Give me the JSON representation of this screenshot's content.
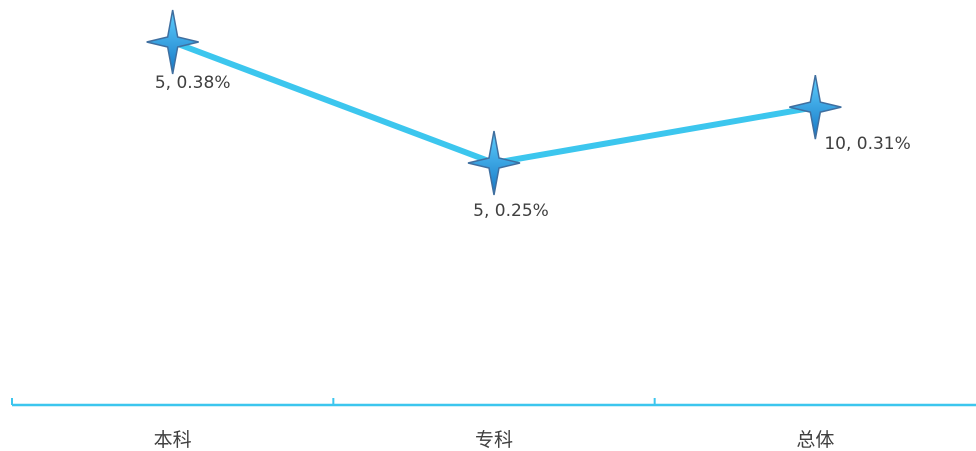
{
  "chart_data": {
    "type": "line",
    "categories": [
      "本科",
      "专科",
      "总体"
    ],
    "series": [
      {
        "counts": [
          5,
          5,
          10
        ],
        "values": [
          0.38,
          0.25,
          0.31
        ],
        "data_labels": [
          "5, 0.38%",
          "5, 0.25%",
          "10, 0.31%"
        ]
      }
    ],
    "line_color": "#3cc6ee",
    "marker_color": "#1f9fe0",
    "axis_color": "#3cc6ee",
    "marker": "four-point-star",
    "grid": false,
    "legend": "none"
  }
}
